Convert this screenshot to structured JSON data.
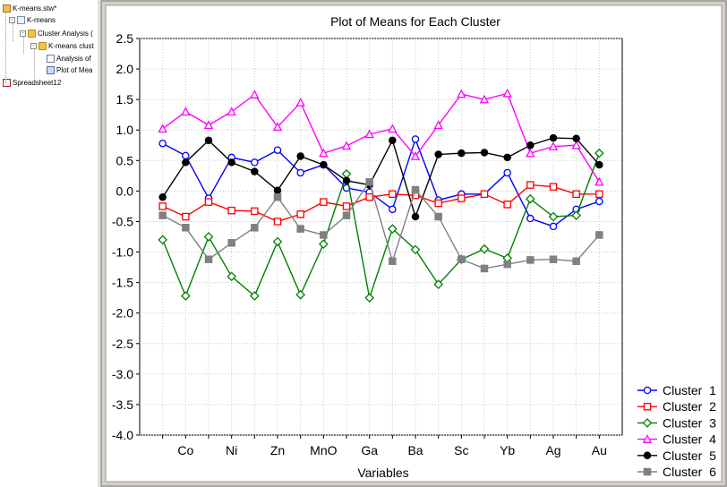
{
  "workbook_tree": {
    "items": [
      {
        "label": "K-means.stw*",
        "icon": "workbook-icon",
        "level": 0,
        "expander": ""
      },
      {
        "label": "K-means",
        "icon": "table-icon",
        "level": 0,
        "expander": "-"
      },
      {
        "label": "Cluster Analysis (",
        "icon": "folder-icon",
        "level": 1,
        "expander": "-"
      },
      {
        "label": "K-means clust",
        "icon": "folder-icon",
        "level": 2,
        "expander": "-"
      },
      {
        "label": "Analysis of",
        "icon": "document-icon",
        "level": 3,
        "expander": ""
      },
      {
        "label": "Plot of Mea",
        "icon": "plot-icon",
        "level": 3,
        "expander": ""
      },
      {
        "label": "Spreadsheet12",
        "icon": "spreadsheet-icon",
        "level": 0,
        "expander": ""
      }
    ]
  },
  "chart_data": {
    "type": "line",
    "title": "Plot of Means for Each Cluster",
    "xlabel": "Variables",
    "ylabel": "",
    "ylim": [
      -4.0,
      2.5
    ],
    "yticks": [
      "2.5",
      "2.0",
      "1.5",
      "1.0",
      "0.5",
      "0.0",
      "-0.5",
      "-1.0",
      "-1.5",
      "-2.0",
      "-2.5",
      "-3.0",
      "-3.5",
      "-4.0"
    ],
    "xtick_labels": [
      "Co",
      "Ni",
      "Zn",
      "MnO",
      "Ga",
      "Ba",
      "Sc",
      "Yb",
      "Ag",
      "Au"
    ],
    "grid": true,
    "legend_position": "bottom-right",
    "series": [
      {
        "name": "Cluster  1",
        "color": "#0000ff",
        "marker": "circle-open",
        "values": [
          0.78,
          0.58,
          -0.12,
          0.55,
          0.47,
          0.67,
          0.3,
          0.43,
          0.05,
          -0.02,
          -0.3,
          0.85,
          -0.15,
          -0.05,
          -0.05,
          0.3,
          -0.45,
          -0.58,
          -0.3,
          -0.17
        ]
      },
      {
        "name": "Cluster  2",
        "color": "#ff0000",
        "marker": "square-open",
        "values": [
          -0.25,
          -0.42,
          -0.18,
          -0.32,
          -0.33,
          -0.5,
          -0.38,
          -0.18,
          -0.25,
          -0.1,
          -0.05,
          -0.07,
          -0.2,
          -0.12,
          -0.05,
          -0.22,
          0.1,
          0.07,
          -0.05,
          -0.05
        ]
      },
      {
        "name": "Cluster  3",
        "color": "#008000",
        "marker": "diamond-open",
        "values": [
          -0.8,
          -1.72,
          -0.75,
          -1.4,
          -1.72,
          -0.83,
          -1.7,
          -0.87,
          0.28,
          -1.75,
          -0.62,
          -0.96,
          -1.53,
          -1.12,
          -0.95,
          -1.1,
          -0.13,
          -0.42,
          -0.4,
          0.62
        ]
      },
      {
        "name": "Cluster  4",
        "color": "#ff00ff",
        "marker": "triangle-open",
        "values": [
          1.02,
          1.3,
          1.08,
          1.3,
          1.58,
          1.05,
          1.45,
          0.62,
          0.74,
          0.93,
          1.02,
          0.57,
          1.08,
          1.59,
          1.5,
          1.6,
          0.62,
          0.73,
          0.75,
          0.15
        ]
      },
      {
        "name": "Cluster  5",
        "color": "#000000",
        "marker": "circle-filled",
        "values": [
          -0.1,
          0.47,
          0.83,
          0.47,
          0.32,
          0.01,
          0.57,
          0.43,
          0.17,
          0.1,
          0.83,
          -0.42,
          0.6,
          0.62,
          0.63,
          0.55,
          0.75,
          0.87,
          0.86,
          0.43
        ]
      },
      {
        "name": "Cluster  6",
        "color": "#808080",
        "marker": "square-filled",
        "values": [
          -0.4,
          -0.6,
          -1.12,
          -0.85,
          -0.6,
          -0.1,
          -0.62,
          -0.72,
          -0.4,
          0.15,
          -1.15,
          0.02,
          -0.42,
          -1.12,
          -1.27,
          -1.2,
          -1.13,
          -1.12,
          -1.15,
          -0.72
        ]
      }
    ]
  }
}
